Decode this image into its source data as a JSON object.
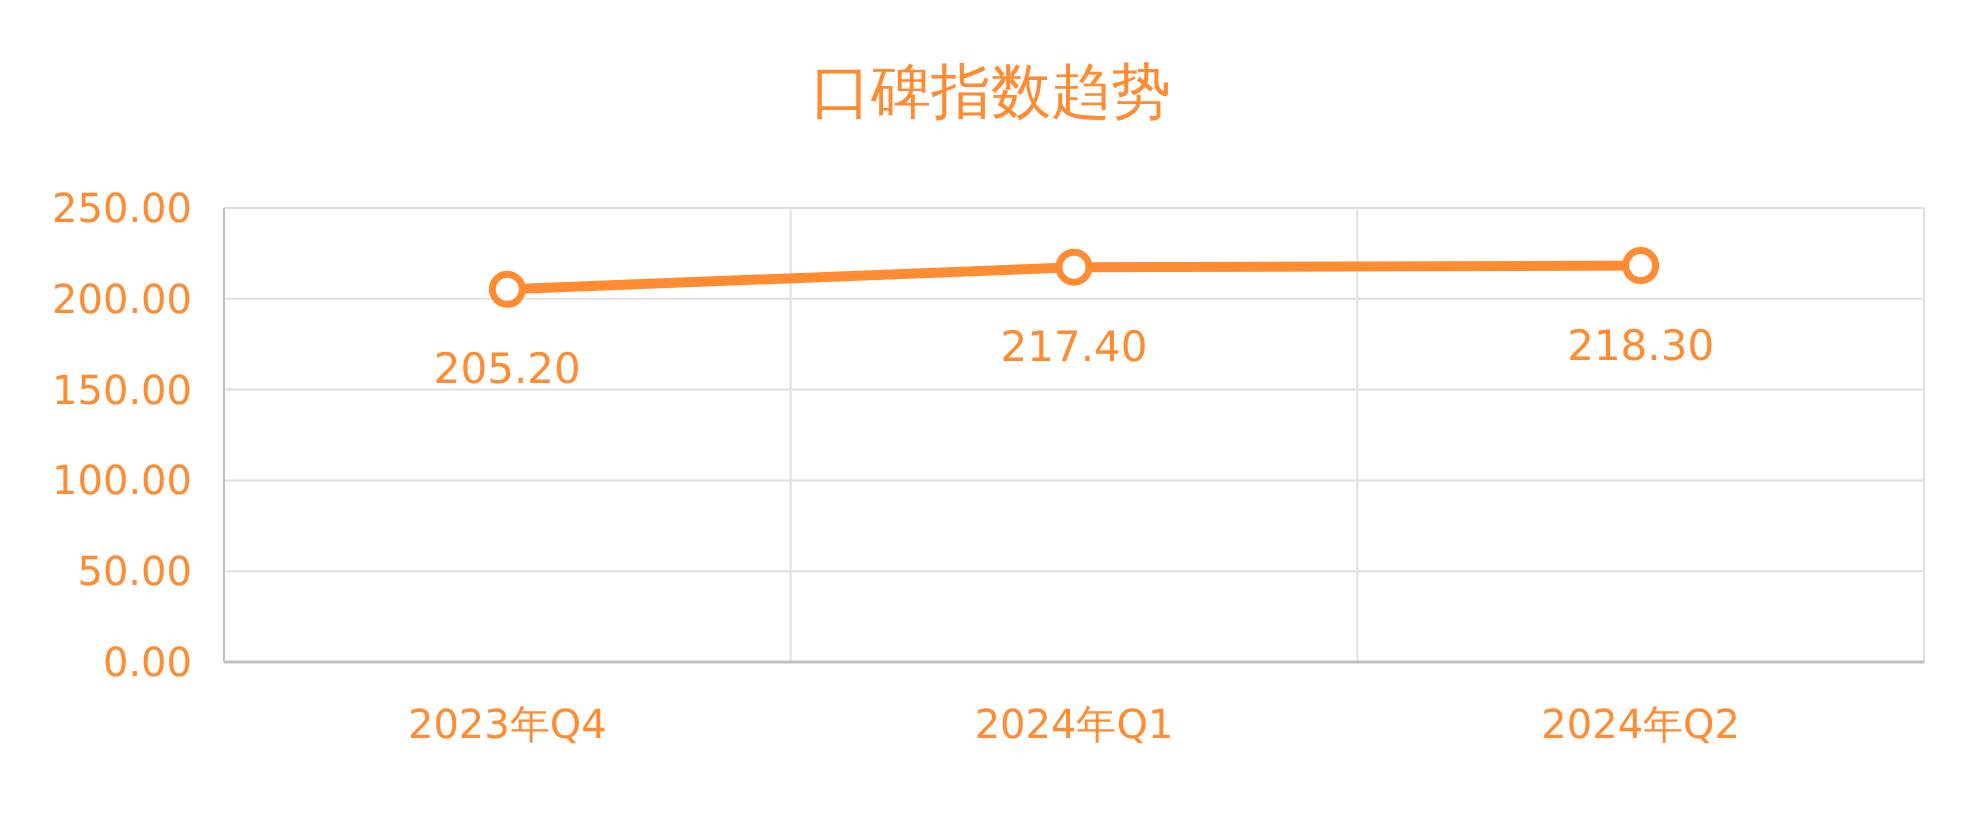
{
  "chart_data": {
    "type": "line",
    "title": "口碑指数趋势",
    "categories": [
      "2023年Q4",
      "2024年Q1",
      "2024年Q2"
    ],
    "series": [
      {
        "color": "#ff8c33",
        "values": [
          205.2,
          217.4,
          218.3
        ],
        "value_labels": [
          "205.20",
          "217.40",
          "218.30"
        ]
      }
    ],
    "ylim": [
      0,
      250
    ],
    "yticks": [
      {
        "value": 0,
        "label": "0.00"
      },
      {
        "value": 50,
        "label": "50.00"
      },
      {
        "value": 100,
        "label": "100.00"
      },
      {
        "value": 150,
        "label": "150.00"
      },
      {
        "value": 200,
        "label": "200.00"
      },
      {
        "value": 250,
        "label": "250.00"
      }
    ],
    "grid": true,
    "marker": "circle",
    "line_style": "solid"
  }
}
